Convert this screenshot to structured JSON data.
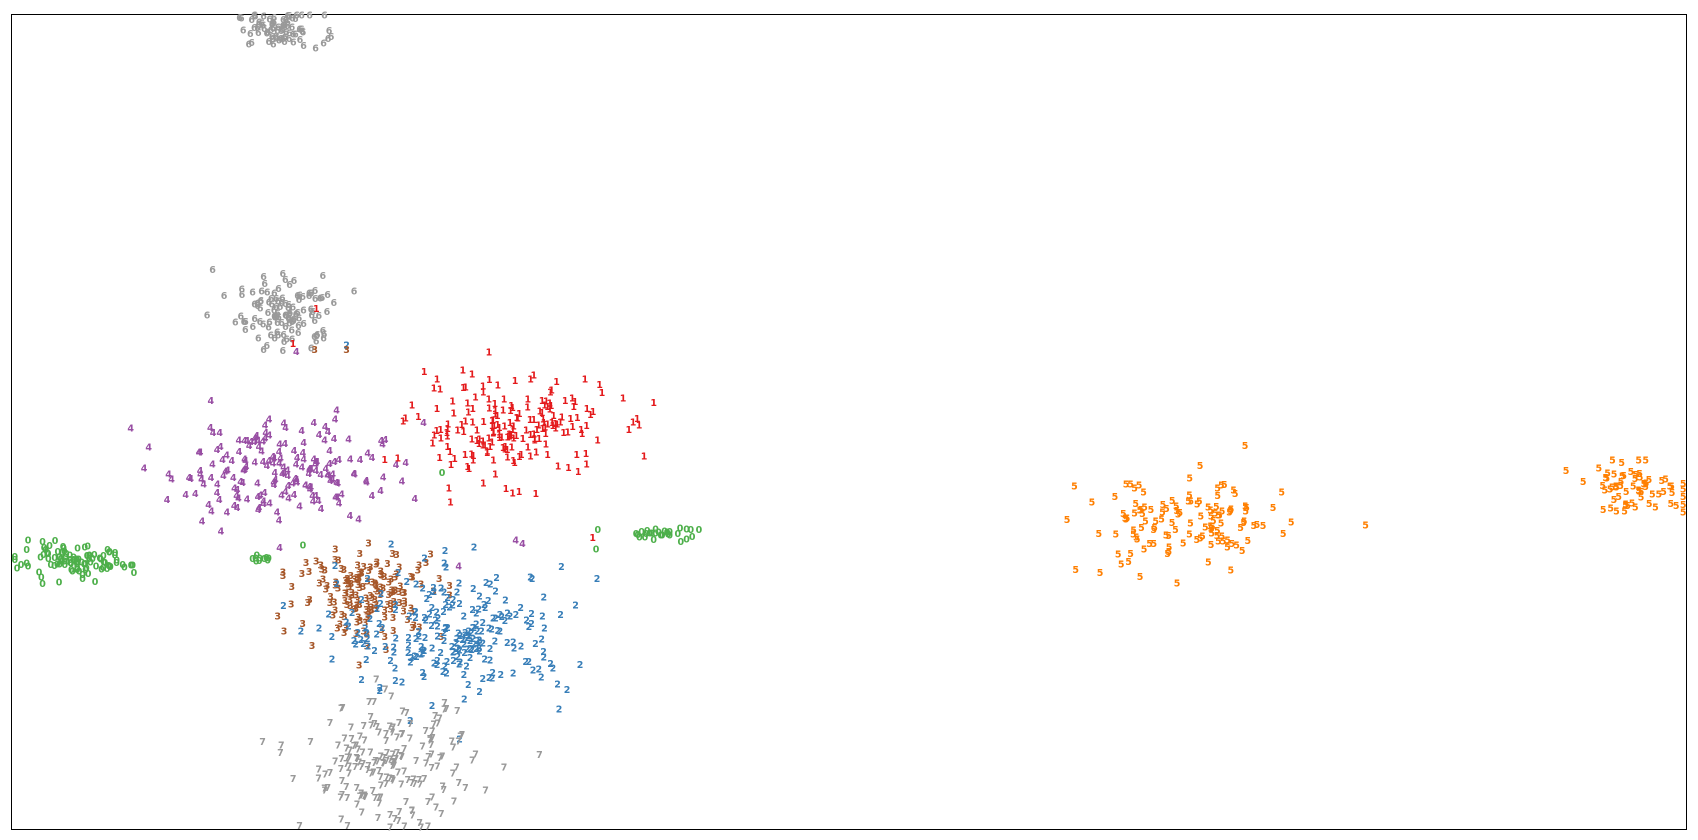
{
  "chart_data": {
    "type": "scatter",
    "title": "",
    "xlabel": "",
    "ylabel": "",
    "xlim": [
      0,
      1000
    ],
    "ylim": [
      0,
      1000
    ],
    "ticks": "none",
    "grid": false,
    "legend": "none",
    "marker": "digit label text",
    "label_colors": {
      "0": "#4daf4a",
      "1": "#e41a1c",
      "2": "#377eb8",
      "3": "#a65628",
      "4": "#984ea3",
      "5": "#ff7f00",
      "6": "#999999",
      "7": "#999999"
    },
    "clusters": [
      {
        "label": "6",
        "center": [
          160,
          980
        ],
        "spread": [
          24,
          19
        ],
        "count": 75
      },
      {
        "label": "6",
        "center": [
          165,
          633
        ],
        "spread": [
          27,
          41
        ],
        "count": 115
      },
      {
        "label": "4",
        "center": [
          158,
          440
        ],
        "spread": [
          58,
          57
        ],
        "count": 190
      },
      {
        "label": "1",
        "center": [
          297,
          493
        ],
        "spread": [
          54,
          56
        ],
        "count": 200
      },
      {
        "label": "0",
        "center": [
          36,
          326
        ],
        "spread": [
          32,
          18
        ],
        "count": 100
      },
      {
        "label": "0",
        "center": [
          388,
          362
        ],
        "spread": [
          20,
          7
        ],
        "count": 28
      },
      {
        "label": "0",
        "center": [
          146,
          330
        ],
        "spread": [
          8,
          5
        ],
        "count": 10
      },
      {
        "label": "3",
        "center": [
          215,
          290
        ],
        "spread": [
          40,
          49
        ],
        "count": 165
      },
      {
        "label": "2",
        "center": [
          265,
          240
        ],
        "spread": [
          62,
          70
        ],
        "count": 235
      },
      {
        "label": "7",
        "center": [
          225,
          78
        ],
        "spread": [
          46,
          68
        ],
        "count": 190
      },
      {
        "label": "5",
        "center": [
          700,
          370
        ],
        "spread": [
          55,
          55
        ],
        "count": 125
      },
      {
        "label": "5",
        "center": [
          970,
          418
        ],
        "spread": [
          34,
          26
        ],
        "count": 65
      }
    ],
    "outliers": [
      {
        "label": "6",
        "x": 120,
        "y": 686
      },
      {
        "label": "1",
        "x": 182,
        "y": 638
      },
      {
        "label": "1",
        "x": 168,
        "y": 595
      },
      {
        "label": "3",
        "x": 181,
        "y": 588
      },
      {
        "label": "2",
        "x": 200,
        "y": 593
      },
      {
        "label": "3",
        "x": 200,
        "y": 588
      },
      {
        "label": "4",
        "x": 170,
        "y": 585
      },
      {
        "label": "4",
        "x": 246,
        "y": 498
      },
      {
        "label": "0",
        "x": 257,
        "y": 437
      },
      {
        "label": "1",
        "x": 347,
        "y": 357
      },
      {
        "label": "0",
        "x": 350,
        "y": 367
      },
      {
        "label": "0",
        "x": 349,
        "y": 343
      },
      {
        "label": "4",
        "x": 301,
        "y": 354
      },
      {
        "label": "4",
        "x": 305,
        "y": 350
      },
      {
        "label": "4",
        "x": 160,
        "y": 345
      },
      {
        "label": "4",
        "x": 267,
        "y": 322
      },
      {
        "label": "3",
        "x": 162,
        "y": 315
      },
      {
        "label": "0",
        "x": 174,
        "y": 348
      }
    ]
  }
}
